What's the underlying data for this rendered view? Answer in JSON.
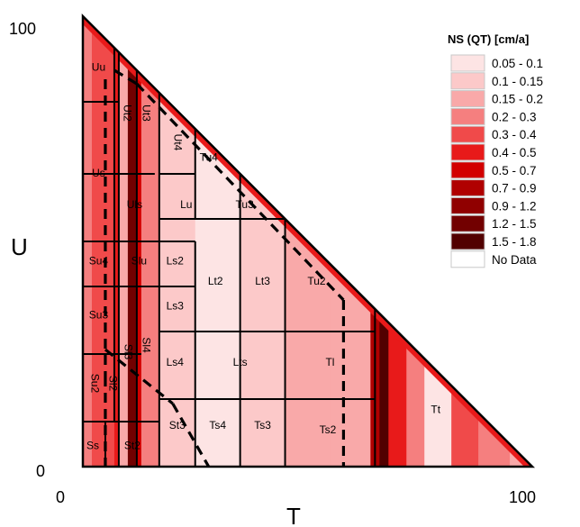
{
  "chart_data": {
    "type": "heatmap",
    "title": "",
    "xlabel": "T",
    "ylabel": "U",
    "x_ticks": [
      "0",
      "100"
    ],
    "y_ticks": [
      "0",
      "100"
    ],
    "xlim": [
      0,
      100
    ],
    "ylim": [
      0,
      100
    ],
    "legend": {
      "title": "NS (QT) [cm/a]",
      "placement": "right",
      "entries": [
        {
          "label": "0.05 - 0.1",
          "color": "#fde4e4"
        },
        {
          "label": "0.1 - 0.15",
          "color": "#fcc9c9"
        },
        {
          "label": "0.15 - 0.2",
          "color": "#f9a9a9"
        },
        {
          "label": "0.2 - 0.3",
          "color": "#f57f7f"
        },
        {
          "label": "0.3 - 0.4",
          "color": "#f04a4a"
        },
        {
          "label": "0.4 - 0.5",
          "color": "#e81a1a"
        },
        {
          "label": "0.5 - 0.7",
          "color": "#d20000"
        },
        {
          "label": "0.7 - 0.9",
          "color": "#b00000"
        },
        {
          "label": "0.9 - 1.2",
          "color": "#900000"
        },
        {
          "label": "1.2 - 1.5",
          "color": "#720000"
        },
        {
          "label": "1.5 - 1.8",
          "color": "#520000"
        },
        {
          "label": "No Data",
          "color": "#ffffff"
        }
      ]
    },
    "color_bands": [
      {
        "t": [
          0,
          2
        ],
        "u": [
          0,
          100
        ],
        "class": 3
      },
      {
        "t": [
          2,
          7
        ],
        "u": [
          0,
          100
        ],
        "class": 4
      },
      {
        "t": [
          7,
          8
        ],
        "u": [
          0,
          100
        ],
        "class": 5
      },
      {
        "t": [
          8,
          10
        ],
        "u": [
          0,
          100
        ],
        "class": 2
      },
      {
        "t": [
          10,
          12
        ],
        "u": [
          0,
          100
        ],
        "class": 9
      },
      {
        "t": [
          12,
          13
        ],
        "u": [
          0,
          100
        ],
        "class": 6
      },
      {
        "t": [
          13,
          17
        ],
        "u": [
          0,
          100
        ],
        "class": 3
      },
      {
        "t": [
          17,
          25
        ],
        "u": [
          0,
          100
        ],
        "class": 1
      },
      {
        "t": [
          25,
          35
        ],
        "u": [
          0,
          100
        ],
        "class": 0
      },
      {
        "t": [
          35,
          45
        ],
        "u": [
          0,
          100
        ],
        "class": 1
      },
      {
        "t": [
          45,
          55
        ],
        "u": [
          0,
          100
        ],
        "class": 2
      },
      {
        "t": [
          55,
          64
        ],
        "u": [
          0,
          100
        ],
        "class": 2
      },
      {
        "t": [
          64,
          66
        ],
        "u": [
          0,
          100
        ],
        "class": 7
      },
      {
        "t": [
          66,
          68
        ],
        "u": [
          0,
          100
        ],
        "class": 10
      },
      {
        "t": [
          68,
          72
        ],
        "u": [
          0,
          100
        ],
        "class": 5
      },
      {
        "t": [
          72,
          76
        ],
        "u": [
          0,
          100
        ],
        "class": 3
      },
      {
        "t": [
          76,
          82
        ],
        "u": [
          0,
          100
        ],
        "class": 0
      },
      {
        "t": [
          82,
          88
        ],
        "u": [
          0,
          100
        ],
        "class": 4
      },
      {
        "t": [
          88,
          95
        ],
        "u": [
          0,
          100
        ],
        "class": 3
      },
      {
        "t": [
          95,
          100
        ],
        "u": [
          0,
          100
        ],
        "class": 2
      }
    ],
    "edge_band": {
      "class": 5,
      "width": 1.8
    },
    "regions": [
      {
        "label": "Uu",
        "t": 3.5,
        "u": 88.5
      },
      {
        "label": "Ut2",
        "t": 9.8,
        "u": 78.5,
        "rotate": 90
      },
      {
        "label": "Ut3",
        "t": 14,
        "u": 78.5,
        "rotate": 90
      },
      {
        "label": "Ut4",
        "t": 21,
        "u": 72,
        "rotate": 90
      },
      {
        "label": "Tu4",
        "t": 28,
        "u": 68.5
      },
      {
        "label": "Us",
        "t": 3.5,
        "u": 65
      },
      {
        "label": "Uls",
        "t": 11.5,
        "u": 58
      },
      {
        "label": "Lu",
        "t": 23,
        "u": 58
      },
      {
        "label": "Tu3",
        "t": 36,
        "u": 58
      },
      {
        "label": "Su4",
        "t": 3.5,
        "u": 45.5
      },
      {
        "label": "Slu",
        "t": 12.5,
        "u": 45.5
      },
      {
        "label": "Ls2",
        "t": 20.5,
        "u": 45.5
      },
      {
        "label": "Lt2",
        "t": 29.5,
        "u": 41
      },
      {
        "label": "Lt3",
        "t": 40,
        "u": 41
      },
      {
        "label": "Tu2",
        "t": 52,
        "u": 41
      },
      {
        "label": "Ls3",
        "t": 20.5,
        "u": 35.5
      },
      {
        "label": "Su3",
        "t": 3.5,
        "u": 33.5
      },
      {
        "label": "Sl3",
        "t": 10,
        "u": 25.5,
        "rotate": 90
      },
      {
        "label": "Sl4",
        "t": 14,
        "u": 27,
        "rotate": 90
      },
      {
        "label": "Ls4",
        "t": 20.5,
        "u": 23
      },
      {
        "label": "Lts",
        "t": 35,
        "u": 23
      },
      {
        "label": "Tl",
        "t": 55,
        "u": 23
      },
      {
        "label": "Su2",
        "t": 2.5,
        "u": 18.5,
        "rotate": 90
      },
      {
        "label": "Sl2",
        "t": 6.5,
        "u": 18.5,
        "rotate": 90
      },
      {
        "label": "St3",
        "t": 21,
        "u": 9
      },
      {
        "label": "Ts4",
        "t": 30,
        "u": 9
      },
      {
        "label": "Ts3",
        "t": 40,
        "u": 9
      },
      {
        "label": "Ts2",
        "t": 54.5,
        "u": 8
      },
      {
        "label": "Tt",
        "t": 78.5,
        "u": 12.5
      },
      {
        "label": "Ss",
        "t": 2.2,
        "u": 4.5
      },
      {
        "label": "St2",
        "t": 11,
        "u": 4.5
      }
    ],
    "boundaries": [
      [
        [
          0,
          81
        ],
        [
          8,
          81
        ]
      ],
      [
        [
          0,
          65
        ],
        [
          16,
          65
        ]
      ],
      [
        [
          0,
          50
        ],
        [
          25,
          50
        ]
      ],
      [
        [
          0,
          40
        ],
        [
          17,
          40
        ]
      ],
      [
        [
          0,
          25
        ],
        [
          13,
          25
        ]
      ],
      [
        [
          0,
          10
        ],
        [
          17,
          10
        ]
      ],
      [
        [
          17,
          40
        ],
        [
          25,
          40
        ]
      ],
      [
        [
          17,
          30
        ],
        [
          35,
          30
        ]
      ],
      [
        [
          17,
          15
        ],
        [
          65,
          15
        ]
      ],
      [
        [
          35,
          30
        ],
        [
          65,
          30
        ]
      ],
      [
        [
          45,
          55
        ],
        [
          17,
          55
        ]
      ],
      [
        [
          5,
          0
        ],
        [
          5,
          10
        ]
      ],
      [
        [
          7,
          10
        ],
        [
          7,
          93
        ]
      ],
      [
        [
          8,
          0
        ],
        [
          8,
          92
        ]
      ],
      [
        [
          12,
          0
        ],
        [
          12,
          88
        ]
      ],
      [
        [
          17,
          0
        ],
        [
          17,
          83
        ]
      ],
      [
        [
          25,
          0
        ],
        [
          25,
          50
        ]
      ],
      [
        [
          25,
          55
        ],
        [
          25,
          65
        ]
      ],
      [
        [
          35,
          0
        ],
        [
          35,
          30
        ]
      ],
      [
        [
          35,
          50
        ],
        [
          35,
          65
        ]
      ],
      [
        [
          35,
          30
        ],
        [
          35,
          50
        ]
      ],
      [
        [
          45,
          0
        ],
        [
          45,
          55
        ]
      ],
      [
        [
          65,
          0
        ],
        [
          65,
          35
        ]
      ],
      [
        [
          17,
          65
        ],
        [
          25,
          65
        ]
      ],
      [
        [
          25,
          65
        ],
        [
          25,
          75
        ]
      ]
    ],
    "dashed_boundaries": [
      [
        [
          5,
          86
        ],
        [
          5,
          20
        ]
      ],
      [
        [
          5,
          20
        ],
        [
          5,
          0
        ]
      ],
      [
        [
          7,
          88
        ],
        [
          12,
          85
        ]
      ],
      [
        [
          12,
          85
        ],
        [
          58,
          37
        ]
      ],
      [
        [
          58,
          37
        ],
        [
          58,
          0
        ]
      ],
      [
        [
          5,
          26
        ],
        [
          20,
          14
        ]
      ],
      [
        [
          20,
          14
        ],
        [
          28,
          0
        ]
      ]
    ]
  }
}
